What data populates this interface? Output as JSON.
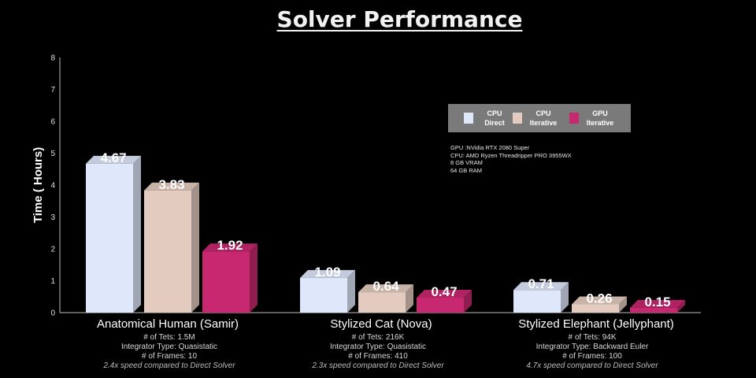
{
  "title": "Solver Performance",
  "chart_data": {
    "type": "bar",
    "ylabel": "Time ( Hours)",
    "ylim": [
      0,
      8
    ],
    "yticks": [
      "0",
      "1",
      "2",
      "3",
      "4",
      "5",
      "6",
      "7",
      "8"
    ],
    "categories": [
      "Anatomical Human (Samir)",
      "Stylized Cat (Nova)",
      "Stylized Elephant (Jellyphant)"
    ],
    "series": [
      {
        "name": "CPU Direct",
        "values": [
          4.67,
          1.09,
          0.71
        ],
        "labels": [
          "4.67",
          "1.09",
          "0.71"
        ],
        "color": "#dfe7fb"
      },
      {
        "name": "CPU Iterative",
        "values": [
          3.83,
          0.64,
          0.26
        ],
        "labels": [
          "3.83",
          "0.64",
          "0.26"
        ],
        "color": "#e3cbc0"
      },
      {
        "name": "GPU Iterative",
        "values": [
          1.92,
          0.47,
          0.15
        ],
        "labels": [
          "1.92",
          "0.47",
          "0.15"
        ],
        "color": "#c8286f"
      }
    ],
    "legend_placement": "top-right",
    "grid": false
  },
  "legend": [
    {
      "line1": "CPU",
      "line2": "Direct",
      "color": "#dfe7fb"
    },
    {
      "line1": "CPU",
      "line2": "Iterative",
      "color": "#e3cbc0"
    },
    {
      "line1": "GPU",
      "line2": "Iterative",
      "color": "#c8286f"
    }
  ],
  "specs": {
    "gpu": "GPU :NVidia RTX 2080 Super",
    "cpu": "CPU: AMD Ryzen Threadripper PRO 3955WX",
    "vram": "8 GB VRAM",
    "ram": "64 GB RAM"
  },
  "notes": [
    {
      "tets": "# of Tets: 1.5M",
      "integrator": "Integrator Type: Quasistatic",
      "frames": "# of Frames: 10",
      "speed": "2.4x speed compared to Direct Solver"
    },
    {
      "tets": "# of Tets: 216K",
      "integrator": "Integrator Type: Quasistatic",
      "frames": "# of Frames: 410",
      "speed": "2.3x speed compared to Direct Solver"
    },
    {
      "tets": "# of Tets: 94K",
      "integrator": "Integrator Type: Backward Euler",
      "frames": "# of Frames: 100",
      "speed": "4.7x speed compared to Direct Solver"
    }
  ]
}
